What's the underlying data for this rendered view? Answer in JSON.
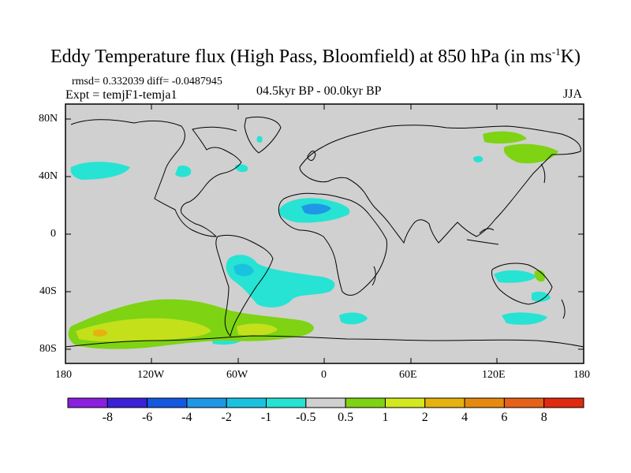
{
  "title": {
    "main": "Eddy Temperature flux (High Pass, Bloomfield) at 850 hPa (in ms",
    "sup": "-1",
    "end": "K)"
  },
  "stats": "rmsd= 0.332039 diff= -0.0487945",
  "experiment": "Expt = temjF1-temja1",
  "period": "04.5kyr BP - 00.0kyr BP",
  "season": "JJA",
  "lat_labels": [
    "80N",
    "40N",
    "0",
    "40S",
    "80S"
  ],
  "lon_labels": [
    "180",
    "120W",
    "60W",
    "0",
    "60E",
    "120E",
    "180"
  ],
  "colorbar": {
    "labels": [
      "-8",
      "-6",
      "-4",
      "-2",
      "-1",
      "-0.5",
      "0.5",
      "1",
      "2",
      "4",
      "6",
      "8"
    ],
    "colors": [
      "#8a1fe0",
      "#3b22d9",
      "#1458e0",
      "#1f97e6",
      "#19c3e0",
      "#27e3d3",
      "#d0d0d0",
      "#7ed313",
      "#d3e81f",
      "#e6b20f",
      "#e68a0f",
      "#e6621a",
      "#e02a10"
    ]
  },
  "map_colors": {
    "ocean_land": "#d0d0d0",
    "neg_light": "#27e3d3",
    "neg_mid": "#19c3e0",
    "neg_deep": "#1f97e6",
    "pos_1": "#7ed313",
    "pos_2": "#c4e01a",
    "pos_4": "#e6b20f"
  }
}
